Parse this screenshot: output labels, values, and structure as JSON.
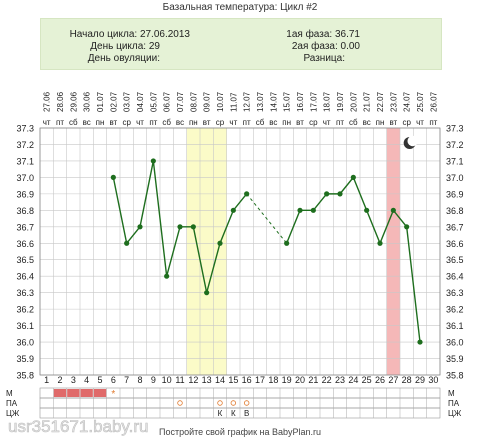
{
  "title": "Базальная температура: Цикл #2",
  "info": {
    "cycle_start": "Начало цикла: 27.06.2013",
    "cycle_day": "День цикла: 29",
    "ovulation_day": "День овуляции:",
    "phase1": "1ая фаза: 36.71",
    "phase2": "2ая фаза: 0.00",
    "difference": "Разница:"
  },
  "footer": "Постройте свой график на BabyPlan.ru",
  "watermark": "usr351671.baby.ru",
  "colors": {
    "line": "#1e6e1e",
    "dashed": "#1e6e1e",
    "highlight_yellow": "#fbfbc8",
    "highlight_red": "#f5b8b8",
    "period_bar": "#e06a6a",
    "info_bg": "#e5f2d6",
    "grid": "#c8c8c8"
  },
  "chart_data": {
    "type": "line",
    "x": [
      1,
      2,
      3,
      4,
      5,
      6,
      7,
      8,
      9,
      10,
      11,
      12,
      13,
      14,
      15,
      16,
      17,
      18,
      19,
      20,
      21,
      22,
      23,
      24,
      25,
      26,
      27,
      28,
      29,
      30
    ],
    "dates": [
      "27.06",
      "28.06",
      "29.06",
      "30.06",
      "01.07",
      "02.07",
      "03.07",
      "04.07",
      "05.07",
      "06.07",
      "07.07",
      "08.07",
      "09.07",
      "10.07",
      "11.07",
      "12.07",
      "13.07",
      "14.07",
      "15.07",
      "16.07",
      "17.07",
      "18.07",
      "19.07",
      "20.07",
      "21.07",
      "22.07",
      "23.07",
      "24.07",
      "25.07",
      "26.07"
    ],
    "weekdays": [
      "чт",
      "пт",
      "сб",
      "вс",
      "пн",
      "вт",
      "ср",
      "чт",
      "пт",
      "сб",
      "вс",
      "пн",
      "вт",
      "ср",
      "чт",
      "пт",
      "сб",
      "вс",
      "пн",
      "вт",
      "ср",
      "чт",
      "пт",
      "сб",
      "вс",
      "пн",
      "вт",
      "ср",
      "чт",
      "пт"
    ],
    "series": [
      {
        "values": [
          null,
          null,
          null,
          null,
          null,
          37.0,
          36.6,
          36.7,
          37.1,
          36.4,
          36.7,
          36.7,
          36.3,
          36.6,
          36.8,
          36.9,
          null,
          null,
          36.6,
          36.8,
          36.8,
          36.9,
          36.9,
          37.0,
          36.8,
          36.6,
          36.8,
          36.7,
          36.0,
          null
        ]
      }
    ],
    "dashed_segments": [
      [
        16,
        19
      ]
    ],
    "ylim": [
      35.8,
      37.3
    ],
    "yticks": [
      37.3,
      37.2,
      37.1,
      37.0,
      36.9,
      36.8,
      36.7,
      36.6,
      36.5,
      36.4,
      36.3,
      36.2,
      36.1,
      36.0,
      35.9,
      35.8
    ],
    "highlight_bands": [
      {
        "from": 12,
        "to": 14,
        "color": "yellow"
      },
      {
        "from": 27,
        "to": 27,
        "color": "red"
      }
    ],
    "grid": true,
    "moon_icon_day": 28,
    "bottom_rows": {
      "labels": [
        "М",
        "ПА",
        "ЦЖ"
      ],
      "period_days": [
        2,
        3,
        4,
        5
      ],
      "star_day": 6,
      "pa_circles": [
        11,
        14,
        15,
        16
      ],
      "cj_letters": [
        {
          "day": 14,
          "text": "К"
        },
        {
          "day": 15,
          "text": "К"
        },
        {
          "day": 16,
          "text": "В"
        }
      ]
    }
  }
}
